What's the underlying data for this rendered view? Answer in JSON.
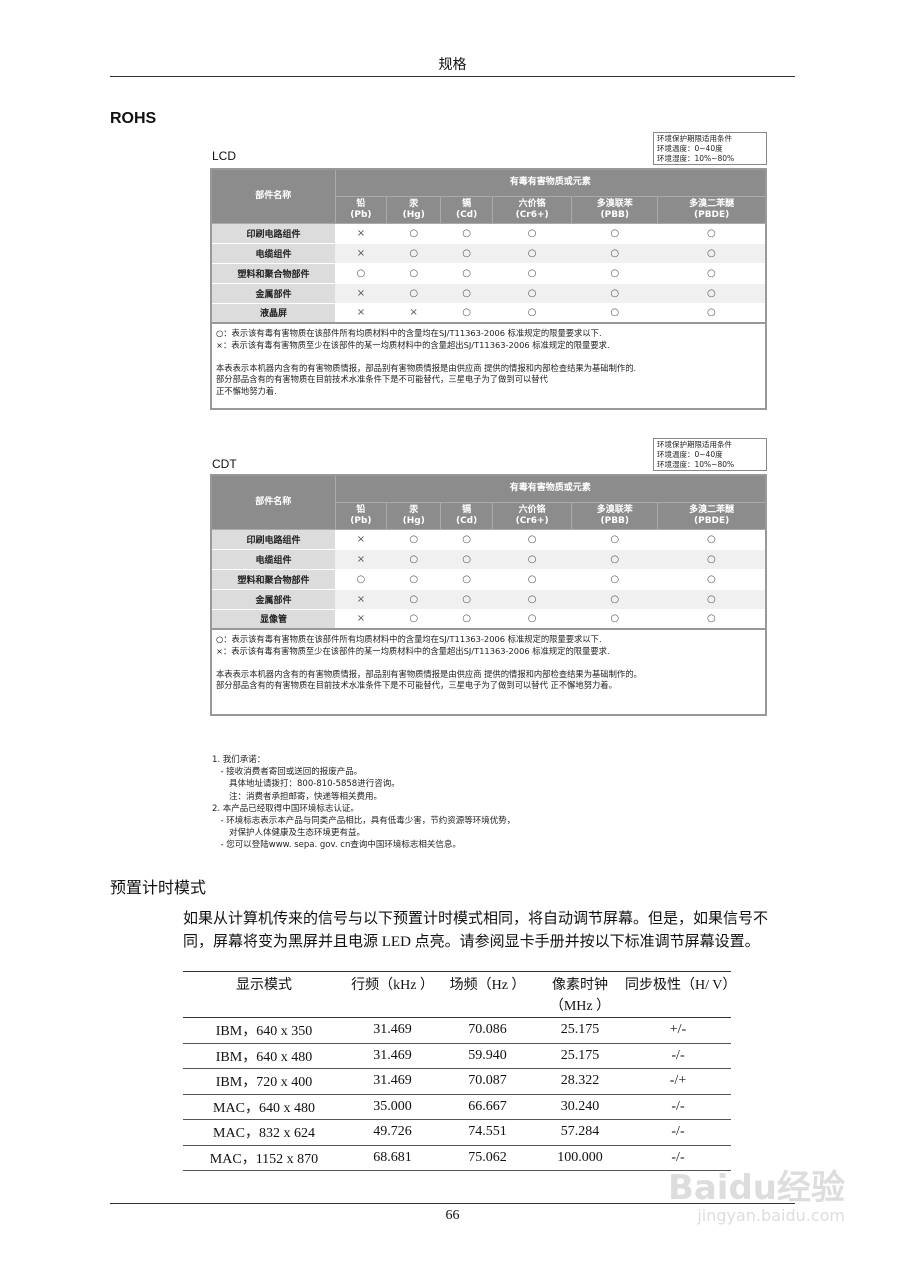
{
  "header": {
    "title": "规格"
  },
  "rohs_title": "ROHS",
  "env": [
    "环境保护期限适用条件",
    "环境温度：0~40度",
    "环境湿度：10%~80%"
  ],
  "rohs_head": {
    "part": "部件名称",
    "group": "有毒有害物质或元素",
    "cols": [
      [
        "铅",
        "(Pb)"
      ],
      [
        "汞",
        "(Hg)"
      ],
      [
        "镉",
        "(Cd)"
      ],
      [
        "六价铬",
        "(Cr6+)"
      ],
      [
        "多溴联苯",
        "(PBB)"
      ],
      [
        "多溴二苯醚",
        "(PBDE)"
      ]
    ]
  },
  "lcd": {
    "label": "LCD",
    "rows": [
      [
        "印刷电路组件",
        "×",
        "○",
        "○",
        "○",
        "○",
        "○"
      ],
      [
        "电缆组件",
        "×",
        "○",
        "○",
        "○",
        "○",
        "○"
      ],
      [
        "塑料和聚合物部件",
        "○",
        "○",
        "○",
        "○",
        "○",
        "○"
      ],
      [
        "金属部件",
        "×",
        "○",
        "○",
        "○",
        "○",
        "○"
      ],
      [
        "液晶屏",
        "×",
        "×",
        "○",
        "○",
        "○",
        "○"
      ]
    ],
    "notes": [
      "○：表示该有毒有害物质在该部件所有均质材料中的含量均在SJ/T11363-2006 标准规定的限量要求以下.",
      "×：表示该有毒有害物质至少在该部件的某一均质材料中的含量超出SJ/T11363-2006 标准规定的限量要求.",
      "",
      "本表表示本机器内含有的有害物质情报，部品别有害物质情报是由供应商 提供的情报和内部检查结果为基础制作的.",
      "部分部品含有的有害物质在目前技术水准条件下是不可能替代，三星电子为了做到可以替代",
      "正不懈地努力着."
    ]
  },
  "cdt": {
    "label": "CDT",
    "rows": [
      [
        "印刷电路组件",
        "×",
        "○",
        "○",
        "○",
        "○",
        "○"
      ],
      [
        "电缆组件",
        "×",
        "○",
        "○",
        "○",
        "○",
        "○"
      ],
      [
        "塑料和聚合物部件",
        "○",
        "○",
        "○",
        "○",
        "○",
        "○"
      ],
      [
        "金属部件",
        "×",
        "○",
        "○",
        "○",
        "○",
        "○"
      ],
      [
        "显像管",
        "×",
        "○",
        "○",
        "○",
        "○",
        "○"
      ]
    ],
    "notes": [
      "○：表示该有毒有害物质在该部件所有均质材料中的含量均在SJ/T11363-2006 标准规定的限量要求以下.",
      "×：表示该有毒有害物质至少在该部件的某一均质材料中的含量超出SJ/T11363-2006 标准规定的限量要求.",
      "",
      "本表表示本机器内含有的有害物质情报，部品别有害物质情报是由供应商 提供的情报和内部检查结果为基础制作的。",
      "部分部品含有的有害物质在目前技术水准条件下是不可能替代，三星电子为了做到可以替代 正不懈地努力着。"
    ]
  },
  "promise": [
    "1. 我们承诺：",
    "　- 接收消费者寄回或送回的报废产品。",
    "　　具体地址请拨打：800-810-5858进行咨询。",
    "　　注：消费者承担邮寄，快递等相关费用。",
    "2. 本产品已经取得中国环境标志认证。",
    "　- 环境标志表示本产品与同类产品相比，具有低毒少害，节约资源等环境优势，",
    "　　对保护人体健康及生态环境更有益。",
    "　- 您可以登陆www. sepa. gov. cn查询中国环境标志相关信息。"
  ],
  "timing": {
    "title": "预置计时模式",
    "intro": "如果从计算机传来的信号与以下预置计时模式相同，将自动调节屏幕。但是，如果信号不同，屏幕将变为黑屏并且电源 LED 点亮。请参阅显卡手册并按以下标准调节屏幕设置。",
    "headers": [
      "显示模式",
      "行频（kHz ）",
      "场频（Hz ）",
      "像素时钟（MHz ）",
      "同步极性（H/ V）"
    ],
    "rows": [
      [
        "IBM，640 x 350",
        "31.469",
        "70.086",
        "25.175",
        "+/-"
      ],
      [
        "IBM，640 x 480",
        "31.469",
        "59.940",
        "25.175",
        "-/-"
      ],
      [
        "IBM，720 x 400",
        "31.469",
        "70.087",
        "28.322",
        "-/+"
      ],
      [
        "MAC，640 x 480",
        "35.000",
        "66.667",
        "30.240",
        "-/-"
      ],
      [
        "MAC，832 x 624",
        "49.726",
        "74.551",
        "57.284",
        "-/-"
      ],
      [
        "MAC，1152 x 870",
        "68.681",
        "75.062",
        "100.000",
        "-/-"
      ]
    ]
  },
  "page_number": "66",
  "watermark": {
    "brand": "Baidu经验",
    "url": "jingyan.baidu.com"
  }
}
